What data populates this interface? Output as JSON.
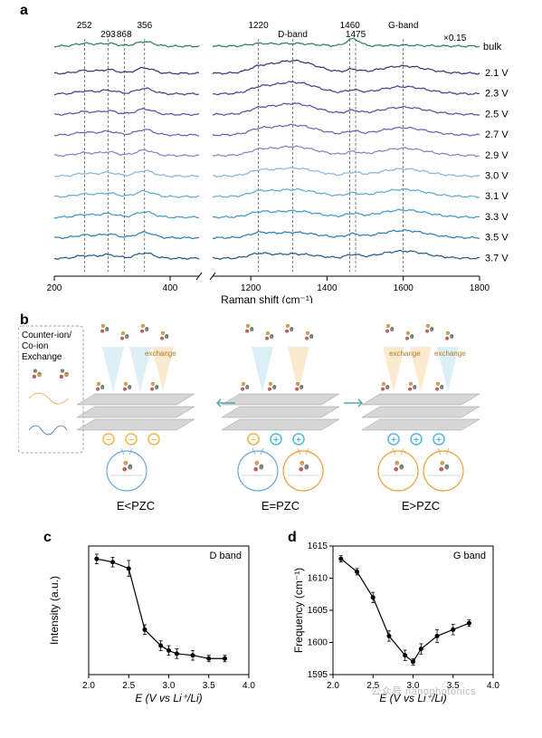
{
  "panels": {
    "a": {
      "label": "a",
      "xlabel": "Raman shift (cm⁻¹)",
      "x_break_left": [
        200,
        450
      ],
      "x_break_right": [
        1100,
        1800
      ],
      "xticks_left": [
        200,
        400
      ],
      "xticks_right": [
        1200,
        1400,
        1600,
        1800
      ],
      "peak_labels": [
        {
          "x": 252,
          "text": "252"
        },
        {
          "x": 293,
          "text": "293"
        },
        {
          "x": 356,
          "text": "356"
        },
        {
          "x": 868,
          "text": "868"
        },
        {
          "x": 1220,
          "text": "1220"
        },
        {
          "x": 1310,
          "text": "D-band"
        },
        {
          "x": 1460,
          "text": "1460"
        },
        {
          "x": 1475,
          "text": "1475"
        },
        {
          "x": 1600,
          "text": "G-band"
        }
      ],
      "bulk_label": "bulk",
      "bulk_scale": "×0.15",
      "bulk_color": "#2a7a6f",
      "voltages": [
        "2.1 V",
        "2.3 V",
        "2.5 V",
        "2.7 V",
        "2.9 V",
        "3.0 V",
        "3.1 V",
        "3.3 V",
        "3.5 V",
        "3.7 V"
      ],
      "spectrum_colors": [
        "#3a2d7a",
        "#4a3896",
        "#5b49a8",
        "#6d5cb5",
        "#8a7dc7",
        "#87b3db",
        "#5ca9d8",
        "#3a95cf",
        "#277db7",
        "#1a5a8f"
      ]
    },
    "b": {
      "label": "b",
      "legend_title_line1": "Counter-ion/",
      "legend_title_line2": "Co-ion",
      "legend_title_line3": "Exchange",
      "state_labels": [
        "E<PZC",
        "E=PZC",
        "E>PZC"
      ],
      "exchange_text": "exchange",
      "colors": {
        "sheet": "#d0d0d0",
        "cone_blue": "#bfe1f0",
        "cone_orange": "#f7d9a8",
        "neg": "#f0b840",
        "pos": "#4fb8d8",
        "atom_green": "#5fb96a",
        "atom_red": "#e05a4a",
        "atom_orange": "#e8a23e",
        "atom_gray": "#888888"
      }
    },
    "c": {
      "label": "c",
      "title": "D band",
      "xlabel": "E (V vs Li⁺/Li)",
      "ylabel": "Intensity (a.u.)",
      "xlim": [
        2.0,
        4.0
      ],
      "xticks": [
        2.0,
        2.5,
        3.0,
        3.5,
        4.0
      ],
      "data_x": [
        2.1,
        2.3,
        2.5,
        2.7,
        2.9,
        3.0,
        3.1,
        3.3,
        3.5,
        3.7
      ],
      "data_y": [
        0.92,
        0.9,
        0.86,
        0.48,
        0.38,
        0.35,
        0.33,
        0.32,
        0.3,
        0.3
      ],
      "y_err": [
        0.03,
        0.03,
        0.05,
        0.03,
        0.03,
        0.03,
        0.03,
        0.03,
        0.02,
        0.02
      ],
      "ylim": [
        0.2,
        1.0
      ],
      "marker_color": "#000000",
      "line_color": "#000000"
    },
    "d": {
      "label": "d",
      "title": "G band",
      "xlabel": "E (V vs Li⁺/Li)",
      "ylabel": "Frequency (cm⁻¹)",
      "xlim": [
        2.0,
        4.0
      ],
      "xticks": [
        2.0,
        2.5,
        3.0,
        3.5,
        4.0
      ],
      "yticks": [
        1595,
        1600,
        1605,
        1610,
        1615
      ],
      "ylim": [
        1595,
        1615
      ],
      "data_x": [
        2.1,
        2.3,
        2.5,
        2.7,
        2.9,
        3.0,
        3.1,
        3.3,
        3.5,
        3.7
      ],
      "data_y": [
        1613,
        1611,
        1607,
        1601,
        1598,
        1597,
        1599,
        1601,
        1602,
        1603
      ],
      "y_err": [
        0.5,
        0.5,
        0.8,
        0.8,
        0.8,
        0.5,
        0.8,
        1.0,
        0.8,
        0.5
      ],
      "marker_color": "#000000",
      "line_color": "#000000"
    }
  },
  "watermark": {
    "text": "公众号  nanophotonics"
  }
}
